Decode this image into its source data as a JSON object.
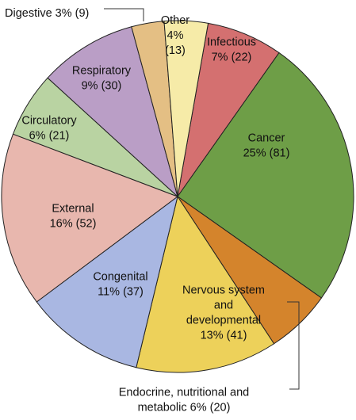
{
  "chart_data": {
    "type": "pie",
    "title": "",
    "unit": "%",
    "slices": [
      {
        "key": "infectious",
        "label_lines": [
          "Infectious",
          "7% (22)"
        ],
        "percent": 7,
        "count": 22,
        "color": "#D47070"
      },
      {
        "key": "cancer",
        "label_lines": [
          "Cancer",
          "25% (81)"
        ],
        "percent": 25,
        "count": 81,
        "color": "#6E9E47"
      },
      {
        "key": "endocrine",
        "label_lines": [
          "Endocrine, nutritional and",
          "metabolic 6% (20)"
        ],
        "percent": 6,
        "count": 20,
        "color": "#D4842C"
      },
      {
        "key": "nervous",
        "label_lines": [
          "Nervous system",
          "and",
          "developmental",
          "13% (41)"
        ],
        "percent": 13,
        "count": 41,
        "color": "#EDD15A"
      },
      {
        "key": "congenital",
        "label_lines": [
          "Congenital",
          "11% (37)"
        ],
        "percent": 11,
        "count": 37,
        "color": "#A9B7E2"
      },
      {
        "key": "external",
        "label_lines": [
          "External",
          "16% (52)"
        ],
        "percent": 16,
        "count": 52,
        "color": "#E8B7AE"
      },
      {
        "key": "circulatory",
        "label_lines": [
          "Circulatory",
          "6% (21)"
        ],
        "percent": 6,
        "count": 21,
        "color": "#B9D3A2"
      },
      {
        "key": "respiratory",
        "label_lines": [
          "Respiratory",
          "9% (30)"
        ],
        "percent": 9,
        "count": 30,
        "color": "#BA9EC6"
      },
      {
        "key": "digestive",
        "label_lines": [
          "Digestive 3% (9)"
        ],
        "percent": 3,
        "count": 9,
        "color": "#E4BF84"
      },
      {
        "key": "other",
        "label_lines": [
          "Other",
          "4%",
          "(13)"
        ],
        "percent": 4,
        "count": 13,
        "color": "#F6EBA8"
      }
    ]
  }
}
